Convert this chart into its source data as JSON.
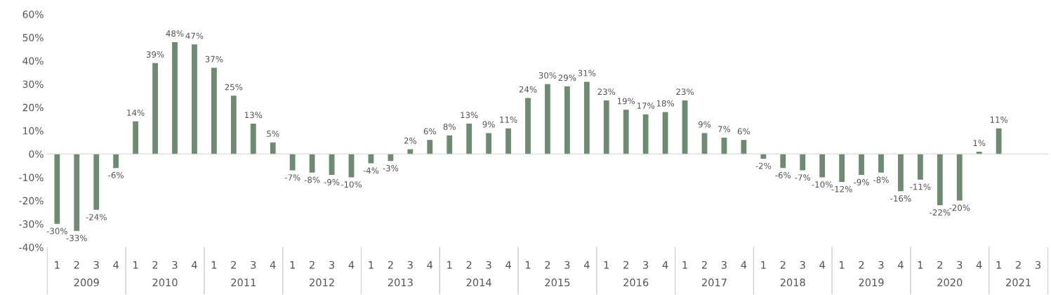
{
  "chart_data": {
    "type": "bar",
    "categories": [
      "1",
      "2",
      "3",
      "4",
      "1",
      "2",
      "3",
      "4",
      "1",
      "2",
      "3",
      "4",
      "1",
      "2",
      "3",
      "4",
      "1",
      "2",
      "3",
      "4",
      "1",
      "2",
      "3",
      "4",
      "1",
      "2",
      "3",
      "4",
      "1",
      "2",
      "3",
      "4",
      "1",
      "2",
      "3",
      "4",
      "1",
      "2",
      "3",
      "4",
      "1",
      "2",
      "3",
      "4",
      "1",
      "2",
      "3",
      "4",
      "1",
      "2",
      "3"
    ],
    "values": [
      -30,
      -33,
      -24,
      -6,
      14,
      39,
      48,
      47,
      37,
      25,
      13,
      5,
      -7,
      -8,
      -9,
      -10,
      -4,
      -3,
      2,
      6,
      8,
      13,
      9,
      11,
      24,
      30,
      29,
      31,
      23,
      19,
      17,
      18,
      23,
      9,
      7,
      6,
      -2,
      -6,
      -7,
      -10,
      -12,
      -9,
      -8,
      -16,
      -11,
      -22,
      -20,
      1,
      11,
      null,
      null
    ],
    "value_labels": [
      "-30%",
      "-33%",
      "-24%",
      "-6%",
      "14%",
      "39%",
      "48%",
      "47%",
      "37%",
      "25%",
      "13%",
      "5%",
      "-7%",
      "-8%",
      "-9%",
      "-10%",
      "-4%",
      "-3%",
      "2%",
      "6%",
      "8%",
      "13%",
      "9%",
      "11%",
      "24%",
      "30%",
      "29%",
      "31%",
      "23%",
      "19%",
      "17%",
      "18%",
      "23%",
      "9%",
      "7%",
      "6%",
      "-2%",
      "-6%",
      "-7%",
      "-10%",
      "-12%",
      "-9%",
      "-8%",
      "-16%",
      "-11%",
      "-22%",
      "-20%",
      "1%",
      "11%",
      null,
      null
    ],
    "color": "#6f8a72",
    "ylim": [
      -40,
      60
    ],
    "yticks": [
      {
        "value": -40,
        "label": "-40%"
      },
      {
        "value": -30,
        "label": "-30%"
      },
      {
        "value": -20,
        "label": "-20%"
      },
      {
        "value": -10,
        "label": "-10%"
      },
      {
        "value": 0,
        "label": "0%"
      },
      {
        "value": 10,
        "label": "10%"
      },
      {
        "value": 20,
        "label": "20%"
      },
      {
        "value": 30,
        "label": "30%"
      },
      {
        "value": 40,
        "label": "40%"
      },
      {
        "value": 50,
        "label": "50%"
      },
      {
        "value": 60,
        "label": "60%"
      }
    ],
    "annotations": [
      "2009",
      "2010",
      "2011",
      "2012",
      "2013",
      "2014",
      "2015",
      "2016",
      "2017",
      "2018",
      "2019",
      "2020",
      "2021"
    ],
    "legend": false
  }
}
